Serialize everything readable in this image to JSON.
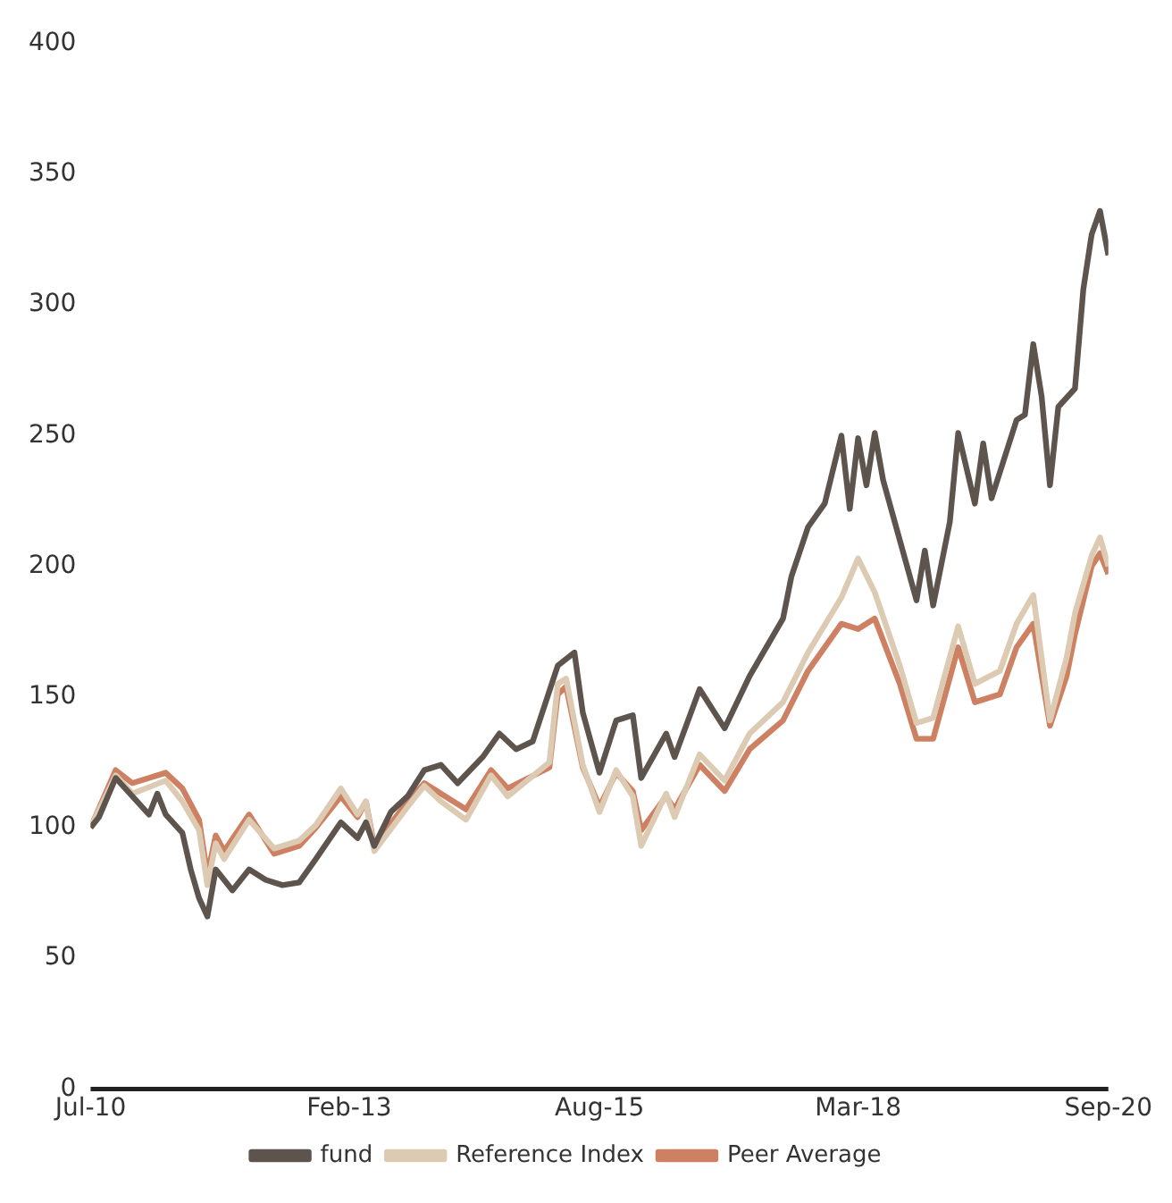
{
  "chart_data": {
    "type": "line",
    "xlim": [
      "2010-07",
      "2020-09"
    ],
    "xticks": [
      {
        "value": "2010-07",
        "label": "Jul-10"
      },
      {
        "value": "2013-02",
        "label": "Feb-13"
      },
      {
        "value": "2015-08",
        "label": "Aug-15"
      },
      {
        "value": "2018-03",
        "label": "Mar-18"
      },
      {
        "value": "2020-09",
        "label": "Sep-20"
      }
    ],
    "ylim": [
      0,
      400
    ],
    "yticks": [
      0,
      50,
      100,
      150,
      200,
      250,
      300,
      350,
      400
    ],
    "grid": false,
    "legend": "bottom",
    "marker": "none",
    "line_style": "solid",
    "series": [
      {
        "name": "fund",
        "color": "#5d544d",
        "x": [
          "2010-07",
          "2010-08",
          "2010-10",
          "2010-12",
          "2011-02",
          "2011-03",
          "2011-04",
          "2011-06",
          "2011-07",
          "2011-08",
          "2011-09",
          "2011-10",
          "2011-12",
          "2012-02",
          "2012-04",
          "2012-06",
          "2012-08",
          "2012-10",
          "2013-01",
          "2013-03",
          "2013-04",
          "2013-05",
          "2013-07",
          "2013-09",
          "2013-11",
          "2014-01",
          "2014-03",
          "2014-06",
          "2014-08",
          "2014-10",
          "2014-12",
          "2015-03",
          "2015-05",
          "2015-06",
          "2015-08",
          "2015-10",
          "2015-12",
          "2016-01",
          "2016-04",
          "2016-05",
          "2016-08",
          "2016-11",
          "2017-02",
          "2017-06",
          "2017-07",
          "2017-09",
          "2017-11",
          "2018-01",
          "2018-02",
          "2018-03",
          "2018-04",
          "2018-05",
          "2018-06",
          "2018-08",
          "2018-10",
          "2018-11",
          "2018-12",
          "2019-02",
          "2019-03",
          "2019-05",
          "2019-06",
          "2019-07",
          "2019-10",
          "2019-11",
          "2019-12",
          "2020-01",
          "2020-02",
          "2020-03",
          "2020-05",
          "2020-06",
          "2020-07",
          "2020-08",
          "2020-09"
        ],
        "values": [
          100,
          104,
          119,
          112,
          105,
          113,
          105,
          98,
          84,
          73,
          66,
          84,
          76,
          84,
          80,
          78,
          79,
          88,
          102,
          96,
          102,
          93,
          106,
          112,
          122,
          124,
          117,
          127,
          136,
          130,
          133,
          162,
          167,
          144,
          121,
          141,
          143,
          119,
          136,
          127,
          153,
          138,
          158,
          180,
          196,
          215,
          224,
          250,
          222,
          249,
          231,
          251,
          233,
          210,
          187,
          206,
          185,
          217,
          251,
          224,
          247,
          226,
          256,
          258,
          285,
          265,
          231,
          261,
          268,
          306,
          327,
          336,
          319
        ]
      },
      {
        "name": "Reference Index",
        "color": "#dccab3",
        "x": [
          "2010-07",
          "2010-10",
          "2010-12",
          "2011-04",
          "2011-06",
          "2011-08",
          "2011-09",
          "2011-10",
          "2011-11",
          "2012-02",
          "2012-05",
          "2012-08",
          "2012-10",
          "2013-01",
          "2013-03",
          "2013-04",
          "2013-05",
          "2013-09",
          "2013-11",
          "2014-01",
          "2014-04",
          "2014-07",
          "2014-09",
          "2015-02",
          "2015-03",
          "2015-04",
          "2015-06",
          "2015-08",
          "2015-10",
          "2015-12",
          "2016-01",
          "2016-04",
          "2016-05",
          "2016-08",
          "2016-11",
          "2017-02",
          "2017-06",
          "2017-09",
          "2018-01",
          "2018-03",
          "2018-05",
          "2018-08",
          "2018-10",
          "2018-12",
          "2019-03",
          "2019-05",
          "2019-08",
          "2019-10",
          "2019-12",
          "2020-02",
          "2020-04",
          "2020-05",
          "2020-07",
          "2020-08",
          "2020-09"
        ],
        "values": [
          100,
          120,
          113,
          118,
          110,
          99,
          78,
          94,
          88,
          103,
          92,
          95,
          101,
          115,
          105,
          110,
          91,
          108,
          116,
          110,
          103,
          120,
          112,
          125,
          155,
          157,
          124,
          106,
          122,
          112,
          93,
          113,
          104,
          128,
          118,
          136,
          148,
          167,
          188,
          203,
          190,
          162,
          140,
          142,
          177,
          155,
          160,
          178,
          189,
          141,
          165,
          182,
          204,
          211,
          200
        ]
      },
      {
        "name": "Peer Average",
        "color": "#cd8062",
        "x": [
          "2010-07",
          "2010-10",
          "2010-12",
          "2011-04",
          "2011-06",
          "2011-08",
          "2011-09",
          "2011-10",
          "2011-11",
          "2012-02",
          "2012-05",
          "2012-08",
          "2012-10",
          "2013-01",
          "2013-03",
          "2013-04",
          "2013-05",
          "2013-09",
          "2013-11",
          "2014-01",
          "2014-04",
          "2014-07",
          "2014-09",
          "2015-02",
          "2015-03",
          "2015-04",
          "2015-06",
          "2015-08",
          "2015-10",
          "2015-12",
          "2016-01",
          "2016-04",
          "2016-05",
          "2016-08",
          "2016-11",
          "2017-02",
          "2017-06",
          "2017-09",
          "2018-01",
          "2018-03",
          "2018-05",
          "2018-08",
          "2018-10",
          "2018-12",
          "2019-03",
          "2019-05",
          "2019-08",
          "2019-10",
          "2019-12",
          "2020-02",
          "2020-04",
          "2020-05",
          "2020-07",
          "2020-08",
          "2020-09"
        ],
        "values": [
          100,
          122,
          117,
          121,
          115,
          103,
          82,
          97,
          91,
          105,
          90,
          93,
          100,
          112,
          104,
          110,
          93,
          110,
          117,
          113,
          107,
          122,
          115,
          123,
          151,
          154,
          123,
          108,
          121,
          114,
          99,
          112,
          107,
          124,
          114,
          130,
          141,
          160,
          178,
          176,
          180,
          155,
          134,
          134,
          169,
          148,
          151,
          169,
          178,
          139,
          158,
          174,
          200,
          205,
          197
        ]
      }
    ]
  }
}
